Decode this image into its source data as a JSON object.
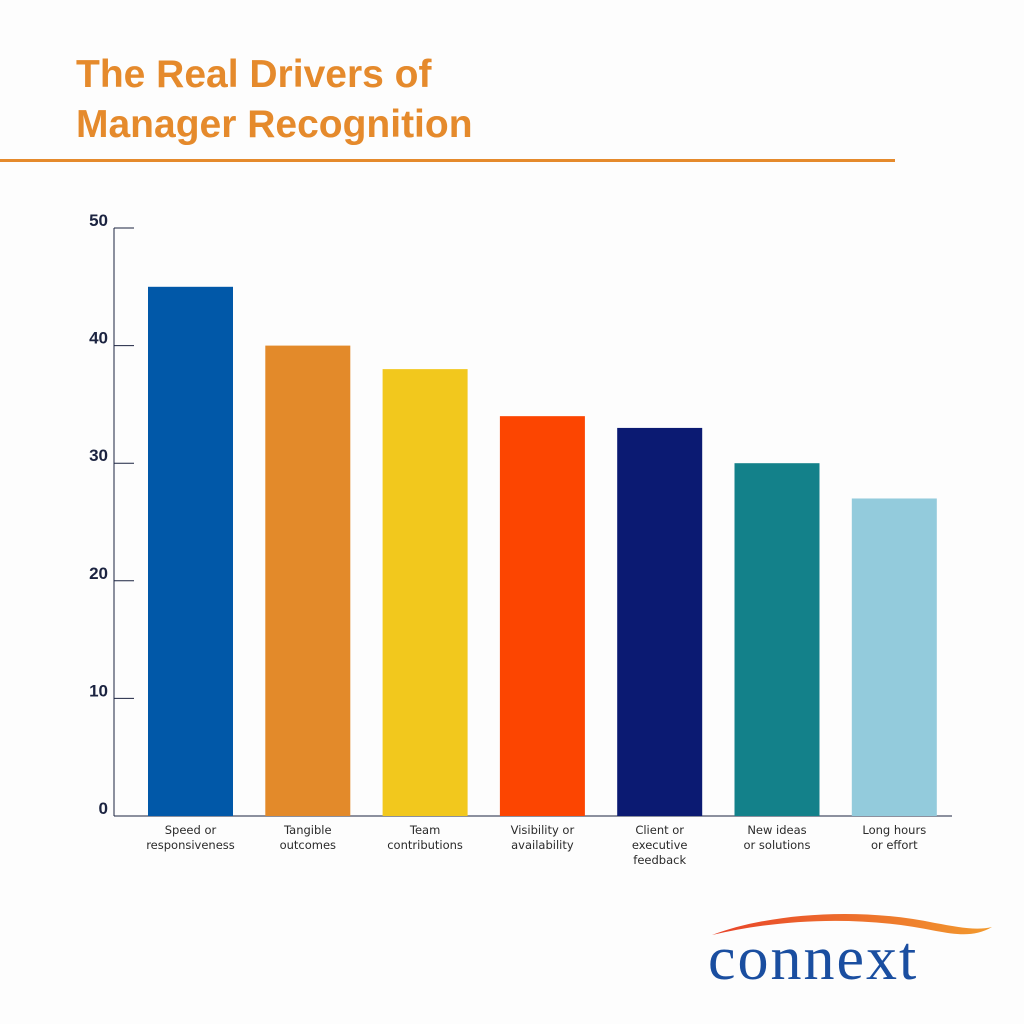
{
  "header": {
    "title_line1": "The Real Drivers of",
    "title_line2": "Manager Recognition"
  },
  "colors": {
    "title": "#e58a2c",
    "axis": "#1b2340",
    "logo_text": "#1a4ea0",
    "logo_swoosh_start": "#e8432a",
    "logo_swoosh_end": "#f29a2e"
  },
  "chart_data": {
    "type": "bar",
    "title": "",
    "xlabel": "",
    "ylabel": "",
    "ylim": [
      0,
      50
    ],
    "yticks": [
      0,
      10,
      20,
      30,
      40,
      50
    ],
    "grid": false,
    "legend": "none",
    "categories": [
      [
        "Speed or",
        "responsiveness"
      ],
      [
        "Tangible",
        "outcomes"
      ],
      [
        "Team",
        "contributions"
      ],
      [
        "Visibility or",
        "availability"
      ],
      [
        "Client or",
        "executive",
        "feedback"
      ],
      [
        "New ideas",
        "or solutions"
      ],
      [
        "Long hours",
        "or effort"
      ]
    ],
    "values": [
      45,
      40,
      38,
      34,
      33,
      30,
      27
    ],
    "bar_colors": [
      "#0158a8",
      "#e38a2a",
      "#f2c81d",
      "#fc4501",
      "#0b1a72",
      "#13818a",
      "#93cbdc"
    ]
  },
  "logo": {
    "icon": "connext-swoosh-logo",
    "text": "connext"
  }
}
